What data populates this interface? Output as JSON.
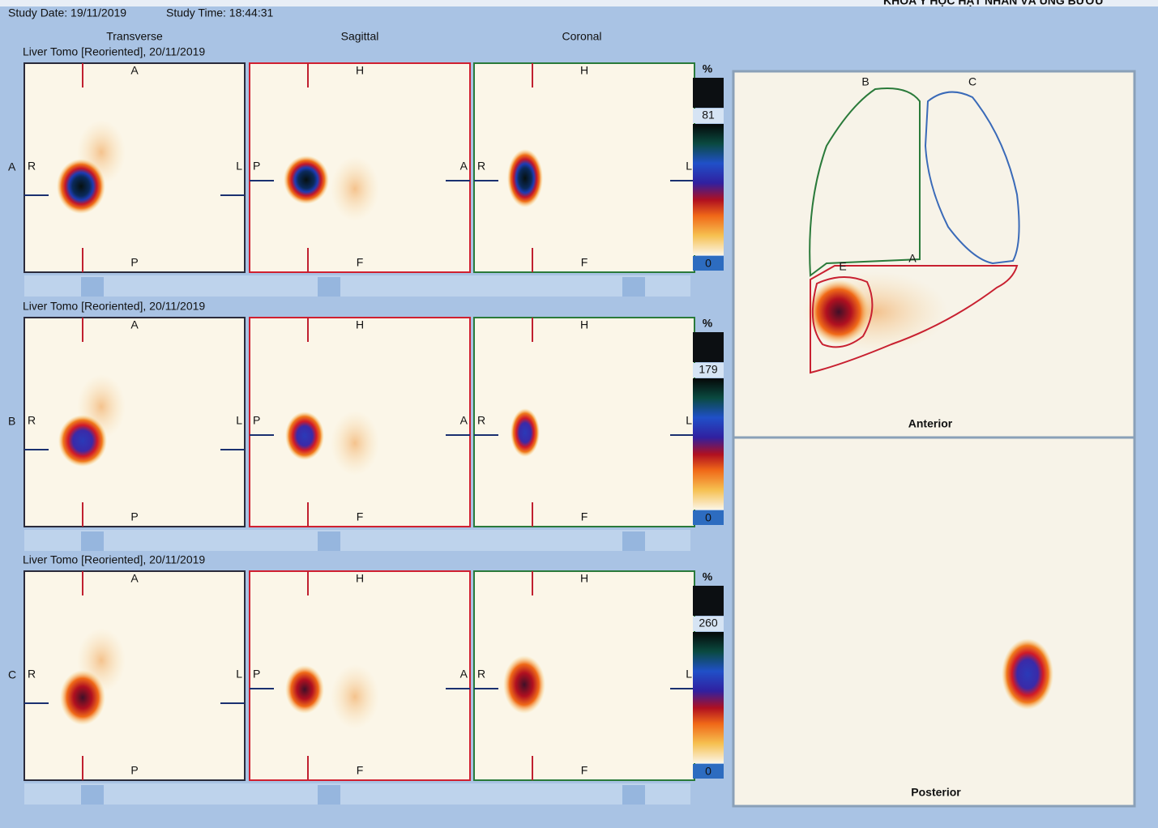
{
  "header": {
    "study_date": "Study Date: 19/11/2019",
    "study_time": "Study Time: 18:44:31",
    "department": "KHOA Y HỌC HẠT NHÂN VÀ UNG BƯỚU"
  },
  "columns": [
    "Transverse",
    "Sagittal",
    "Coronal"
  ],
  "orientation": {
    "transverse": {
      "top": "A",
      "bottom": "P",
      "left": "R",
      "right": "L"
    },
    "sagittal": {
      "top": "H",
      "bottom": "F",
      "left": "P",
      "right": "A"
    },
    "coronal": {
      "top": "H",
      "bottom": "F",
      "left": "R",
      "right": "L"
    }
  },
  "rows": [
    {
      "label": "A",
      "title": "Liver Tomo [Reoriented], 20/11/2019",
      "scale_unit": "%",
      "scale_max": 81,
      "scale_min": 0
    },
    {
      "label": "B",
      "title": "Liver Tomo [Reoriented], 20/11/2019",
      "scale_unit": "%",
      "scale_max": 179,
      "scale_min": 0
    },
    {
      "label": "C",
      "title": "Liver Tomo [Reoriented], 20/11/2019",
      "scale_unit": "%",
      "scale_max": 260,
      "scale_min": 0
    }
  ],
  "anterior": {
    "label": "Anterior",
    "rois": [
      "B",
      "C",
      "E",
      "A"
    ]
  },
  "posterior": {
    "label": "Posterior"
  }
}
